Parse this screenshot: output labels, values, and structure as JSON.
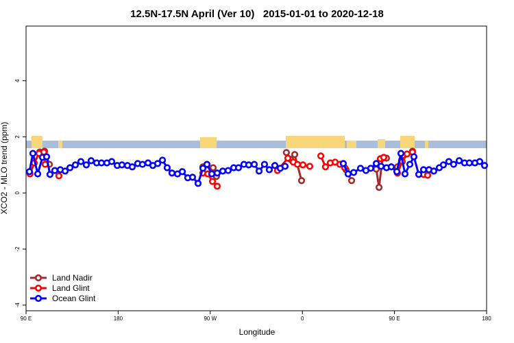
{
  "chart_data": {
    "type": "line",
    "title": "12.5N-17.5N April (Ver 10)   2015-01-01 to 2020-12-18",
    "x_label": "Longitude",
    "y_label": "XCO2 - MLO trend (ppm)",
    "xlim": [
      90,
      540
    ],
    "ylim": [
      -4.2,
      5.95
    ],
    "xticks": [
      {
        "value": 90,
        "label": "90 E"
      },
      180,
      {
        "value": 270,
        "label": "90 W"
      },
      {
        "value": 360,
        "label": "0"
      },
      {
        "value": 450,
        "label": "90 E"
      },
      {
        "value": 540,
        "label": "180"
      }
    ],
    "yticks": [
      -4,
      -2,
      0,
      2,
      4
    ],
    "legend": "bottomleft",
    "series": [
      {
        "name": "Land Nadir",
        "color": "#a52a2a",
        "x": [
          103.4,
          108.1,
          112.8,
          190,
          262.8,
          272.8,
          276.1,
          310,
          344.4,
          348.5,
          352.5,
          359.2,
          380,
          402.7,
          408.1,
          420,
          432.2,
          434.9,
          438.3,
          442.2,
          447,
          452.9,
          456.9,
          467.6
        ],
        "values": [
          1.46,
          1.49,
          1.02,
          null,
          0.93,
          0.9,
          0.59,
          null,
          1.44,
          1.2,
          1.37,
          0.44,
          null,
          0.83,
          0.44,
          null,
          0.85,
          0.2,
          1.24,
          1.24,
          null,
          0.93,
          1.17,
          1.49
        ]
      },
      {
        "name": "Land Glint",
        "color": "#ff0000",
        "x": [
          93.9,
          98.0,
          102.7,
          107.4,
          108.7,
          113,
          118.1,
          122.1,
          190,
          262.8,
          267.5,
          272.2,
          276.8,
          300,
          335.7,
          345.8,
          351.1,
          355.2,
          360.5,
          367.2,
          372,
          378.0,
          382.6,
          387.3,
          392.0,
          396.7,
          401.4,
          420,
          436.2,
          439.5,
          446,
          452.9,
          457.6,
          462.3,
          467.6,
          473,
          478.4,
          482.4
        ],
        "values": [
          0.68,
          1.07,
          1.41,
          1.46,
          1.02,
          null,
          0.8,
          0.61,
          null,
          0.71,
          0.68,
          0.41,
          0.24,
          null,
          0.8,
          1.24,
          1.1,
          1.02,
          1.0,
          0.95,
          null,
          1.32,
          0.93,
          1.07,
          1.1,
          1.02,
          0.9,
          null,
          1.22,
          1.27,
          null,
          0.71,
          1.12,
          1.39,
          1.46,
          null,
          0.66,
          0.63
        ]
      },
      {
        "name": "Ocean Glint",
        "color": "#0000ff",
        "x": [
          93.3,
          96.7,
          101.4,
          106.1,
          110.1,
          113.4,
          118.1,
          123.5,
          128.2,
          132.9,
          138.2,
          143.6,
          148.9,
          153.6,
          159.0,
          163.7,
          169.0,
          173.7,
          179.1,
          183.7,
          189.1,
          193.8,
          199.1,
          203.8,
          209.2,
          213.9,
          218.6,
          223.3,
          227.9,
          232.6,
          238.0,
          242.7,
          248.0,
          252.7,
          258.1,
          262.8,
          266.8,
          271.5,
          276.8,
          282.2,
          287.5,
          292.9,
          297.6,
          302.9,
          307.6,
          313.0,
          317.7,
          323.0,
          327.7,
          333.1,
          338.4,
          343.1,
          370,
          400.0,
          404.7,
          410.1,
          416.8,
          422.1,
          426.8,
          432.2,
          436.9,
          442.2,
          446.9,
          452.3,
          456.3,
          460.3,
          465.0,
          469.0,
          473.7,
          478.4,
          483.7,
          488.4,
          493.8,
          497.8,
          503.1,
          507.8,
          513.2,
          518.5,
          523.2,
          528.6,
          533.3,
          538.0
        ],
        "values": [
          0.76,
          1.41,
          0.68,
          1.27,
          1.29,
          0.66,
          0.8,
          0.83,
          0.78,
          0.9,
          1.0,
          1.12,
          1.0,
          1.15,
          1.07,
          1.07,
          1.07,
          1.12,
          0.98,
          1.0,
          0.98,
          0.93,
          1.05,
          1.02,
          1.07,
          0.98,
          1.05,
          1.17,
          0.9,
          0.71,
          0.68,
          0.76,
          0.54,
          0.56,
          0.34,
          0.88,
          1.02,
          0.68,
          0.71,
          0.78,
          0.8,
          0.9,
          0.9,
          1.02,
          1.0,
          1.02,
          0.78,
          1.02,
          0.83,
          0.98,
          0.88,
          0.95,
          null,
          1.05,
          0.68,
          0.73,
          0.88,
          0.8,
          0.88,
          1.05,
          0.95,
          0.9,
          0.93,
          0.76,
          1.41,
          0.68,
          1.02,
          1.29,
          0.66,
          0.83,
          0.83,
          0.78,
          0.9,
          1.0,
          1.12,
          1.02,
          1.15,
          1.07,
          1.07,
          1.07,
          1.12,
          0.98
        ]
      }
    ]
  }
}
